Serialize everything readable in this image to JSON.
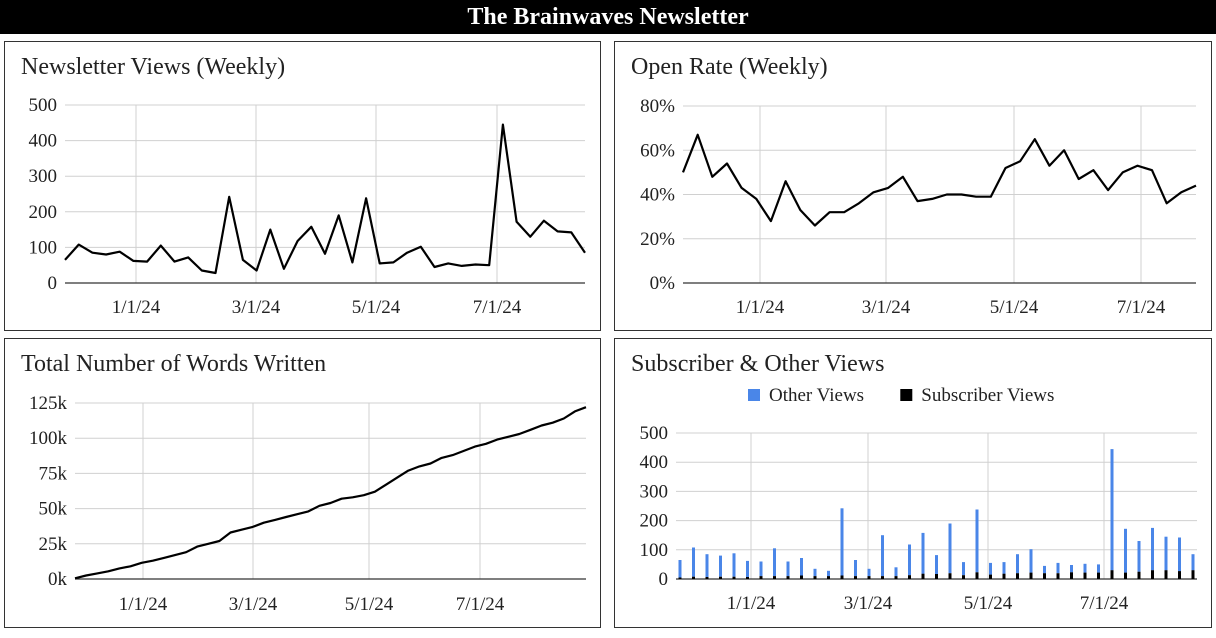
{
  "page": {
    "title": "The Brainwaves Newsletter"
  },
  "chart_data": [
    {
      "id": "views",
      "type": "line",
      "title": "Newsletter Views (Weekly)",
      "xlabel": "",
      "ylabel": "",
      "x_ticks": [
        "1/1/24",
        "3/1/24",
        "5/1/24",
        "7/1/24"
      ],
      "y_ticks": [
        "0",
        "100",
        "200",
        "300",
        "400",
        "500"
      ],
      "ylim": [
        0,
        500
      ],
      "grid": true,
      "color": "#000000",
      "series": [
        {
          "values": [
            65,
            108,
            85,
            80,
            88,
            62,
            60,
            105,
            60,
            72,
            35,
            28,
            242,
            65,
            35,
            150,
            40,
            118,
            158,
            82,
            190,
            58,
            238,
            55,
            58,
            85,
            102,
            45,
            55,
            48,
            52,
            50,
            445,
            172,
            130,
            175,
            145,
            142,
            85
          ]
        }
      ]
    },
    {
      "id": "open_rate",
      "type": "line",
      "title": "Open Rate (Weekly)",
      "xlabel": "",
      "ylabel": "",
      "x_ticks": [
        "1/1/24",
        "3/1/24",
        "5/1/24",
        "7/1/24"
      ],
      "y_ticks": [
        "0%",
        "20%",
        "40%",
        "60%",
        "80%"
      ],
      "ylim": [
        0,
        80
      ],
      "grid": true,
      "color": "#000000",
      "series": [
        {
          "values": [
            50,
            67,
            48,
            54,
            43,
            38,
            28,
            46,
            33,
            26,
            32,
            32,
            36,
            41,
            43,
            48,
            37,
            38,
            40,
            40,
            39,
            39,
            52,
            55,
            65,
            53,
            60,
            47,
            51,
            42,
            50,
            53,
            51,
            36,
            41,
            44
          ]
        }
      ]
    },
    {
      "id": "words",
      "type": "line",
      "title": "Total Number of Words Written",
      "xlabel": "",
      "ylabel": "",
      "x_ticks": [
        "1/1/24",
        "3/1/24",
        "5/1/24",
        "7/1/24"
      ],
      "y_ticks": [
        "0k",
        "25k",
        "50k",
        "75k",
        "100k",
        "125k"
      ],
      "ylim": [
        0,
        125000
      ],
      "grid": true,
      "color": "#000000",
      "series": [
        {
          "values": [
            500,
            2500,
            4000,
            5500,
            7500,
            9000,
            11500,
            13000,
            15000,
            17000,
            19000,
            23000,
            25000,
            27000,
            33000,
            35000,
            37000,
            40000,
            42000,
            44000,
            46000,
            48000,
            52000,
            54000,
            57000,
            58000,
            59500,
            62000,
            67000,
            72000,
            77000,
            80000,
            82000,
            86000,
            88000,
            91000,
            94000,
            96000,
            99000,
            101000,
            103000,
            106000,
            109000,
            111000,
            114000,
            119000,
            122000
          ]
        }
      ]
    },
    {
      "id": "sub_views",
      "type": "bar",
      "stacked": true,
      "title": "Subscriber & Other Views",
      "xlabel": "",
      "ylabel": "",
      "legend_position": "top",
      "x_ticks": [
        "1/1/24",
        "3/1/24",
        "5/1/24",
        "7/1/24"
      ],
      "y_ticks": [
        "0",
        "100",
        "200",
        "300",
        "400",
        "500"
      ],
      "ylim": [
        0,
        500
      ],
      "grid": true,
      "series": [
        {
          "name": "Other Views",
          "color": "#4a86e8",
          "values": [
            60,
            100,
            78,
            72,
            80,
            55,
            50,
            95,
            50,
            60,
            25,
            18,
            230,
            55,
            25,
            140,
            30,
            105,
            140,
            65,
            170,
            45,
            215,
            40,
            40,
            65,
            80,
            25,
            35,
            25,
            30,
            28,
            415,
            150,
            105,
            145,
            115,
            115,
            55
          ]
        },
        {
          "name": "Subscriber Views",
          "color": "#000000",
          "values": [
            5,
            8,
            7,
            8,
            8,
            7,
            10,
            10,
            10,
            12,
            10,
            10,
            12,
            10,
            10,
            10,
            10,
            13,
            18,
            17,
            20,
            13,
            23,
            15,
            18,
            20,
            22,
            20,
            20,
            23,
            22,
            22,
            30,
            22,
            25,
            30,
            30,
            27,
            30
          ]
        }
      ]
    }
  ]
}
